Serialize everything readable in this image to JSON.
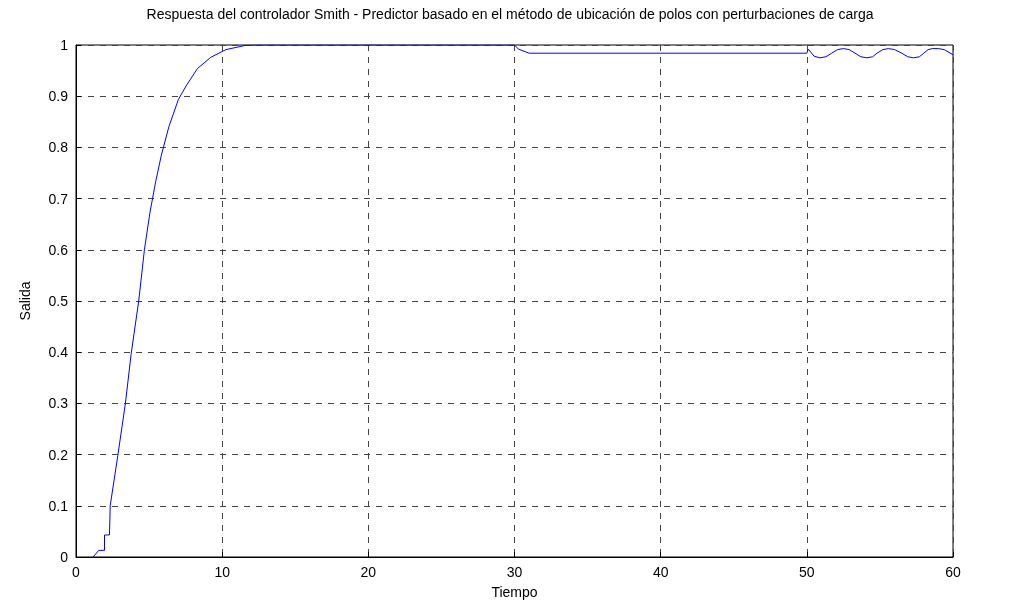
{
  "chart_data": {
    "type": "line",
    "title": "Respuesta del controlador Smith - Predictor basado en el método de ubicación de polos con perturbaciones de carga",
    "xlabel": "Tiempo",
    "ylabel": "Salida",
    "series": [
      {
        "color": "#0000ff",
        "x": [
          1.17,
          1.56,
          1.95,
          1.95,
          2.29,
          2.34,
          2.86,
          3.38,
          3.77,
          4.29,
          4.68,
          5.06,
          5.45,
          5.84,
          6.36,
          7.01,
          7.53,
          8.31,
          9.22,
          10.26,
          11.56,
          12.3,
          30,
          30.27,
          31,
          50,
          50.1,
          50.5,
          50.9,
          51.3,
          51.7,
          52.1,
          52.5,
          52.9,
          53.3,
          53.7,
          54.1,
          54.5,
          54.8,
          55.2,
          55.6,
          56.0,
          56.5,
          56.9,
          57.3,
          57.7,
          58.0,
          58.3,
          58.6,
          59.0,
          59.4,
          60
        ],
        "values": [
          0,
          0.013,
          0.013,
          0.043,
          0.043,
          0.1,
          0.198,
          0.3,
          0.396,
          0.5,
          0.6,
          0.673,
          0.733,
          0.785,
          0.841,
          0.894,
          0.92,
          0.954,
          0.976,
          0.991,
          0.999,
          1,
          1,
          0.992,
          0.984,
          0.984,
          0.992,
          0.978,
          0.975,
          0.977,
          0.984,
          0.991,
          0.993,
          0.991,
          0.984,
          0.977,
          0.975,
          0.977,
          0.984,
          0.991,
          0.993,
          0.991,
          0.984,
          0.977,
          0.975,
          0.977,
          0.984,
          0.991,
          0.993,
          0.993,
          0.991,
          0.981
        ]
      }
    ],
    "xlim": [
      0,
      60
    ],
    "xticks": [
      0,
      10,
      20,
      30,
      40,
      50,
      60
    ],
    "ylim": [
      0,
      1
    ],
    "yticks": [
      0,
      0.1,
      0.2,
      0.3,
      0.4,
      0.5,
      0.6,
      0.7,
      0.8,
      0.9,
      1
    ],
    "grid": true,
    "marker": "none",
    "line_style": "solid"
  }
}
